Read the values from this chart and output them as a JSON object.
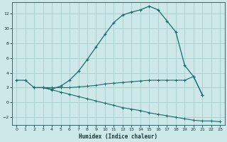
{
  "xlabel": "Humidex (Indice chaleur)",
  "background_color": "#cce8e8",
  "grid_color": "#aacccc",
  "line_color": "#1a6b6b",
  "xlim": [
    -0.5,
    23.5
  ],
  "ylim": [
    -3,
    13.5
  ],
  "yticks": [
    -2,
    0,
    2,
    4,
    6,
    8,
    10,
    12
  ],
  "xticks": [
    0,
    1,
    2,
    3,
    4,
    5,
    6,
    7,
    8,
    9,
    10,
    11,
    12,
    13,
    14,
    15,
    16,
    17,
    18,
    19,
    20,
    21,
    22,
    23
  ],
  "series0_x": [
    0,
    1,
    2,
    3,
    4,
    5,
    6,
    7,
    8,
    9,
    10,
    11,
    12,
    13,
    14,
    15,
    16,
    17,
    18,
    19,
    20,
    21
  ],
  "series0_y": [
    3.0,
    3.0,
    2.0,
    2.0,
    1.8,
    2.2,
    3.0,
    4.2,
    5.8,
    7.5,
    9.2,
    10.8,
    11.8,
    12.2,
    12.5,
    13.0,
    12.5,
    11.0,
    9.5,
    5.0,
    3.5,
    1.0
  ],
  "series1_x": [
    2,
    3,
    4,
    5,
    6,
    7,
    8,
    9,
    10,
    11,
    12,
    13,
    14,
    15,
    16,
    17,
    18,
    19,
    20,
    21
  ],
  "series1_y": [
    2.0,
    2.0,
    2.0,
    2.0,
    2.0,
    2.1,
    2.2,
    2.3,
    2.5,
    2.6,
    2.7,
    2.8,
    2.9,
    3.0,
    3.0,
    3.0,
    3.0,
    3.0,
    3.5,
    1.0
  ],
  "series2_x": [
    2,
    3,
    4,
    5,
    6,
    7,
    8,
    9,
    10,
    11,
    12,
    13,
    14,
    15,
    16,
    17,
    18,
    19,
    20,
    21,
    22,
    23
  ],
  "series2_y": [
    2.0,
    2.0,
    1.7,
    1.4,
    1.1,
    0.8,
    0.5,
    0.2,
    -0.1,
    -0.4,
    -0.7,
    -0.9,
    -1.1,
    -1.4,
    -1.6,
    -1.8,
    -2.0,
    -2.2,
    -2.4,
    -2.5,
    -2.5,
    -2.6
  ]
}
